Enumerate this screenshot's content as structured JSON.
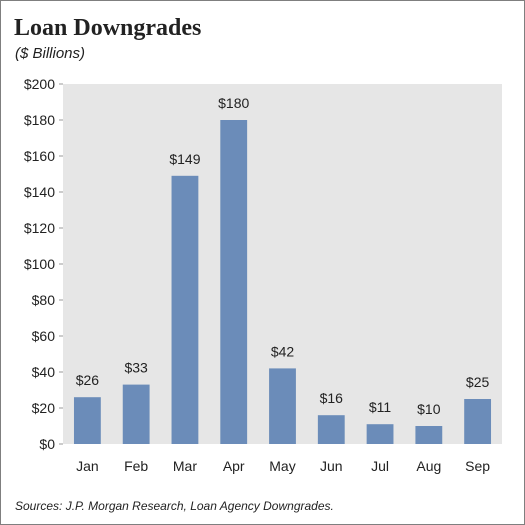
{
  "header": {
    "title": "Loan Downgrades",
    "subtitle": "($ Billions)"
  },
  "footer": {
    "source": "Sources: J.P. Morgan Research, Loan Agency Downgrades."
  },
  "colors": {
    "bar": "#6b8cb9",
    "plot_background": "#e6e6e6",
    "text": "#222222"
  },
  "chart_data": {
    "type": "bar",
    "categories": [
      "Jan",
      "Feb",
      "Mar",
      "Apr",
      "May",
      "Jun",
      "Jul",
      "Aug",
      "Sep"
    ],
    "values": [
      26,
      33,
      149,
      180,
      42,
      16,
      11,
      10,
      25
    ],
    "data_labels": [
      "$26",
      "$33",
      "$149",
      "$180",
      "$42",
      "$16",
      "$11",
      "$10",
      "$25"
    ],
    "title": "Loan Downgrades",
    "subtitle": "($ Billions)",
    "xlabel": "",
    "ylabel": "",
    "ylim": [
      0,
      200
    ],
    "yticks": [
      0,
      20,
      40,
      60,
      80,
      100,
      120,
      140,
      160,
      180,
      200
    ],
    "ytick_labels": [
      "$0",
      "$20",
      "$40",
      "$60",
      "$80",
      "$100",
      "$120",
      "$140",
      "$160",
      "$180",
      "$200"
    ],
    "grid": false,
    "legend": "none"
  }
}
